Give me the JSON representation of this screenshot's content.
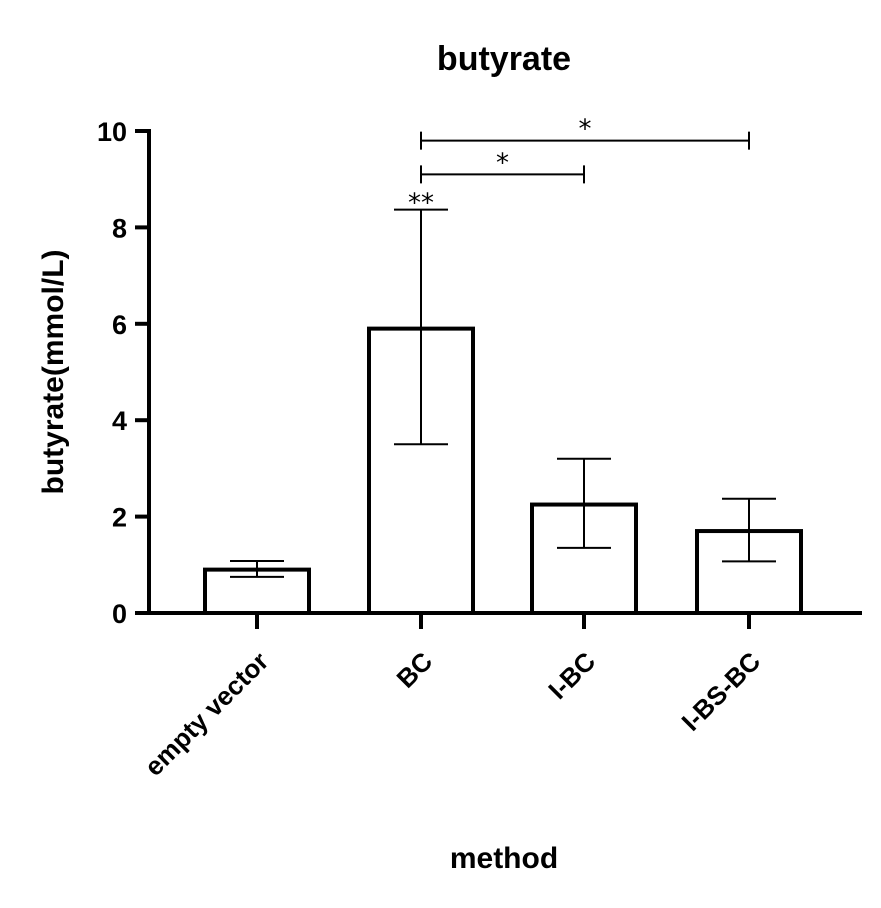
{
  "chart_data": {
    "type": "bar",
    "title": "butyrate",
    "xlabel": "method",
    "ylabel": "butyrate(mmol/L)",
    "ylim": [
      0,
      10
    ],
    "yticks": [
      "0",
      "2",
      "4",
      "6",
      "8",
      "10"
    ],
    "categories": [
      "empty vector",
      "BC",
      "I-BC",
      "I-BS-BC"
    ],
    "values": [
      0.9,
      5.9,
      2.25,
      1.7
    ],
    "error_low": [
      0.75,
      3.5,
      1.35,
      1.07
    ],
    "error_high": [
      1.08,
      8.37,
      3.2,
      2.37
    ],
    "bar_fill": "#ffffff",
    "stroke_color": "#000000",
    "grid": false,
    "annotations": [
      {
        "label": "**",
        "type": "above-bar",
        "category": "BC"
      },
      {
        "label": "*",
        "type": "bracket",
        "from": "BC",
        "to": "I-BC",
        "y": 9.1
      },
      {
        "label": "*",
        "type": "bracket",
        "from": "BC",
        "to": "I-BS-BC",
        "y": 9.8
      }
    ]
  }
}
